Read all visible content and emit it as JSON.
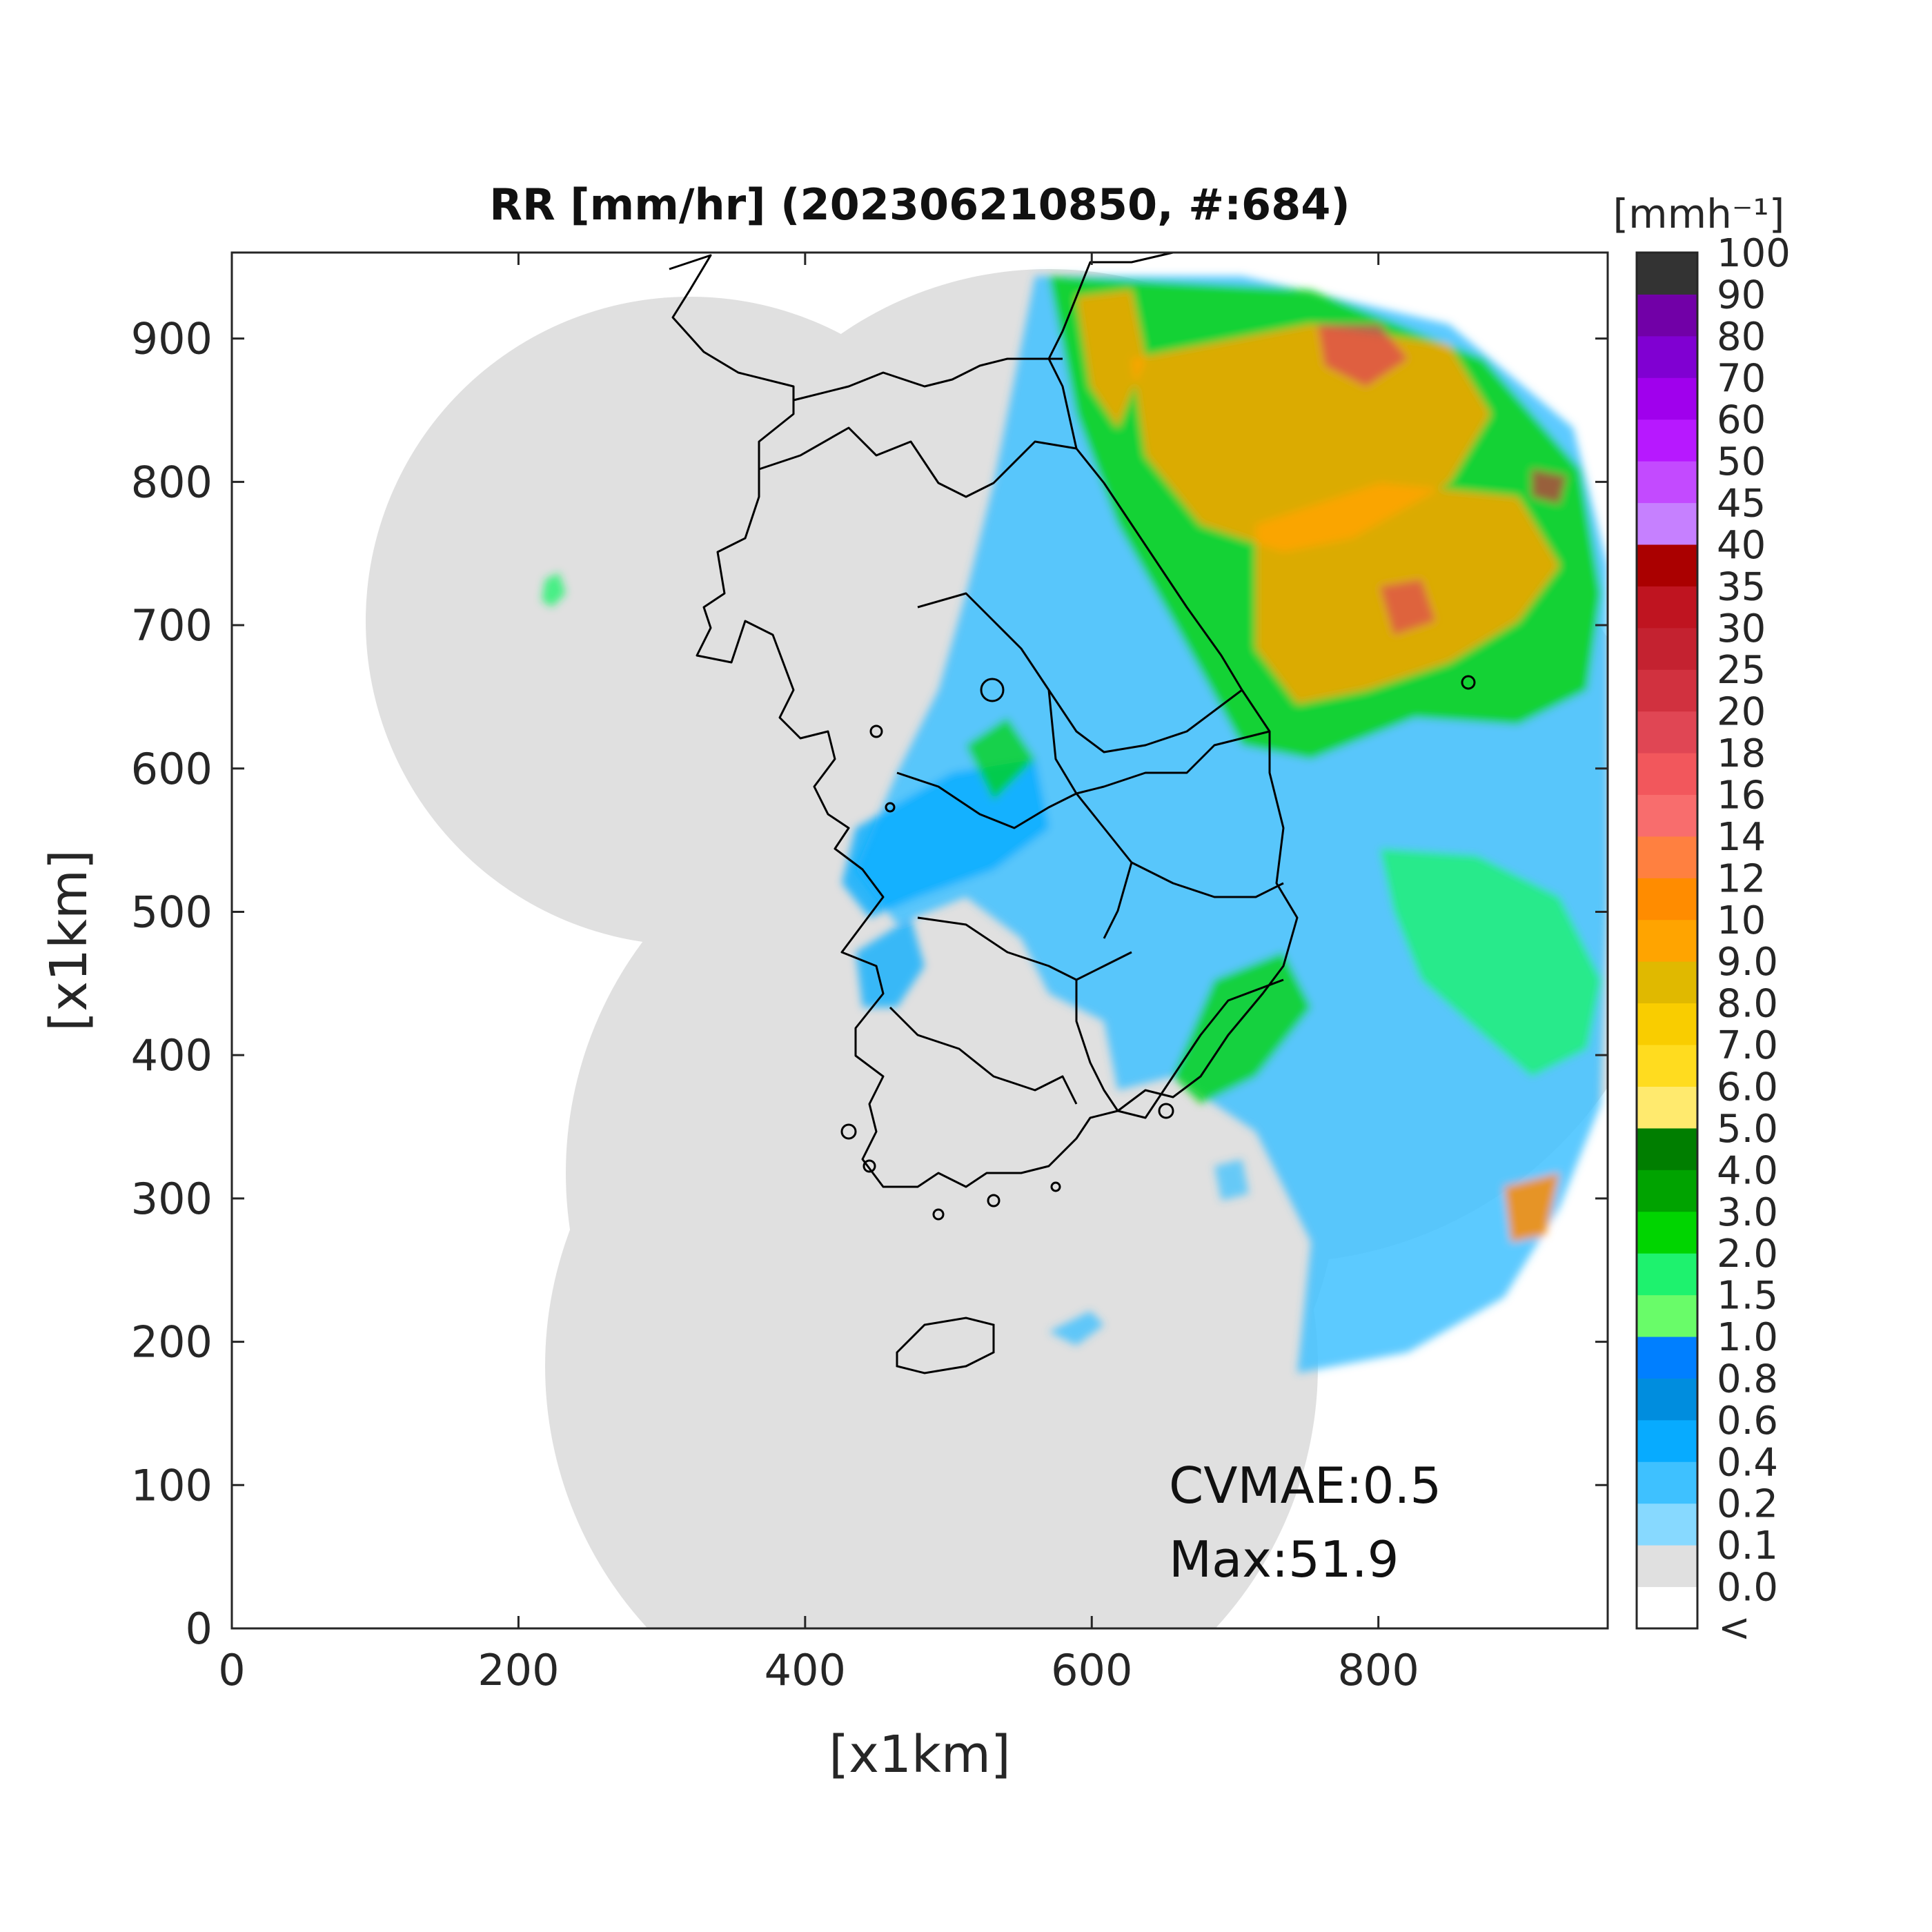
{
  "title": "RR [mm/hr] (202306210850, #:684)",
  "x_axis": {
    "label": "[x1km]",
    "range": [
      0,
      960
    ],
    "ticks": [
      0,
      200,
      400,
      600,
      800
    ]
  },
  "y_axis": {
    "label": "[x1km]",
    "range": [
      0,
      960
    ],
    "ticks": [
      0,
      100,
      200,
      300,
      400,
      500,
      600,
      700,
      800,
      900
    ]
  },
  "colorbar": {
    "unit": "[mmh⁻¹]",
    "under_label": "<",
    "levels": [
      "0.0",
      "0.1",
      "0.2",
      "0.4",
      "0.6",
      "0.8",
      "1.0",
      "1.5",
      "2.0",
      "3.0",
      "4.0",
      "5.0",
      "6.0",
      "7.0",
      "8.0",
      "9.0",
      "10",
      "12",
      "14",
      "16",
      "18",
      "20",
      "25",
      "30",
      "35",
      "40",
      "45",
      "50",
      "60",
      "70",
      "80",
      "90",
      "100"
    ],
    "colors": [
      "#ffffff",
      "#e0e0e0",
      "#87d9ff",
      "#3ec1ff",
      "#07abff",
      "#008dde",
      "#007fff",
      "#69fc69",
      "#1ef26e",
      "#00d500",
      "#00a300",
      "#007e00",
      "#ffea6e",
      "#ffdc1f",
      "#f9cd00",
      "#e0b900",
      "#ffa400",
      "#ff8c00",
      "#ff8040",
      "#f86d6d",
      "#f2575c",
      "#e04654",
      "#d1313f",
      "#c42230",
      "#bf1420",
      "#aa0000",
      "#c680ff",
      "#c34aff",
      "#b718ff",
      "#a000ed",
      "#8000d2",
      "#7100a7",
      "#333333"
    ]
  },
  "annotations": {
    "cvmae": "CVMAE:0.5",
    "max": "Max:51.9"
  },
  "map_layers": {
    "coverage_fill": "#e0e0e0",
    "coastline_color": "#000000",
    "background": "#ffffff"
  }
}
